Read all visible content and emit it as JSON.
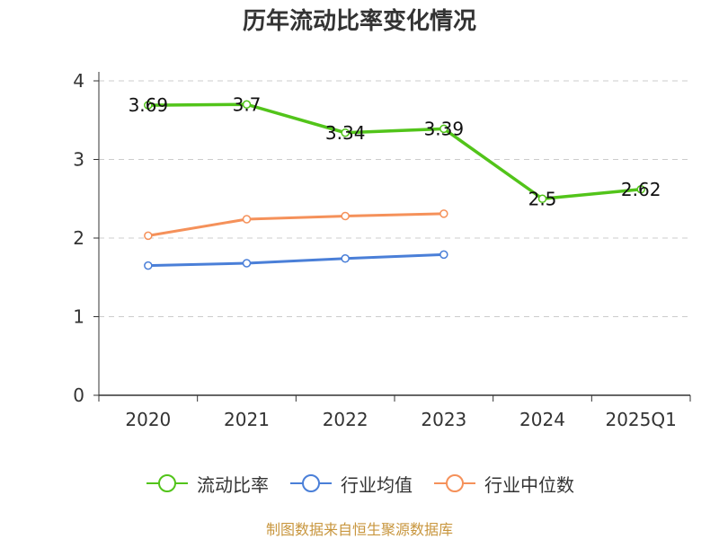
{
  "chart_data": {
    "type": "line",
    "title": "历年流动比率变化情况",
    "categories": [
      "2020",
      "2021",
      "2022",
      "2023",
      "2024",
      "2025Q1"
    ],
    "ylim": [
      0,
      4
    ],
    "yticks": [
      0,
      1,
      2,
      3,
      4
    ],
    "grid": true,
    "legend_position": "bottom",
    "series": [
      {
        "name": "流动比率",
        "color": "#52c41a",
        "values": [
          3.69,
          3.7,
          3.34,
          3.39,
          2.5,
          2.62
        ],
        "data_labels": [
          "3.69",
          "3.7",
          "3.34",
          "3.39",
          "2.5",
          "2.62"
        ]
      },
      {
        "name": "行业均值",
        "color": "#4a7fd8",
        "values": [
          1.65,
          1.68,
          1.74,
          1.79,
          null,
          null
        ]
      },
      {
        "name": "行业中位数",
        "color": "#f5915a",
        "values": [
          2.03,
          2.24,
          2.28,
          2.31,
          null,
          null
        ]
      }
    ],
    "source": "制图数据来自恒生聚源数据库"
  }
}
